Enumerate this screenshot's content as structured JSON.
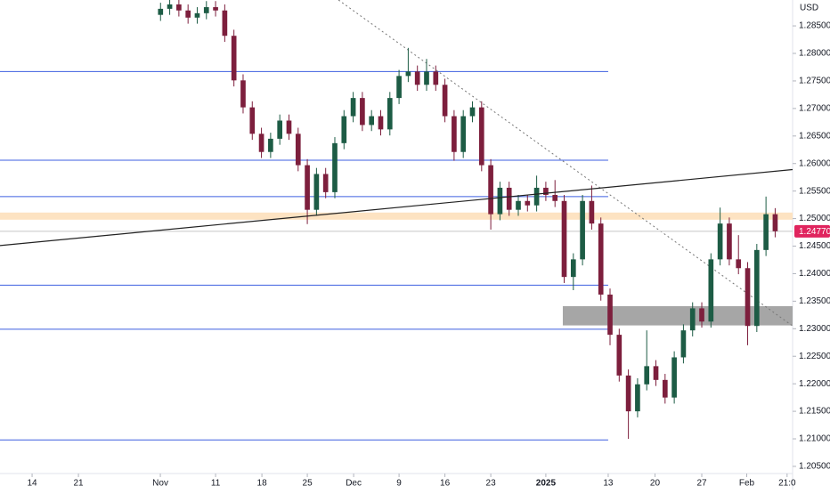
{
  "chart_data": {
    "type": "candlestick",
    "currency": "USD",
    "xlim": [
      -3.5,
      82.9
    ],
    "ylim": [
      1.2037,
      1.2897
    ],
    "xticks": [
      {
        "value": 0,
        "label": "14"
      },
      {
        "value": 5.05,
        "label": "21"
      },
      {
        "value": 13.98,
        "label": "Nov"
      },
      {
        "value": 20,
        "label": "11"
      },
      {
        "value": 25.05,
        "label": "18"
      },
      {
        "value": 30,
        "label": "25"
      },
      {
        "value": 35.05,
        "label": "Dec"
      },
      {
        "value": 40,
        "label": "9"
      },
      {
        "value": 45,
        "label": "16"
      },
      {
        "value": 50,
        "label": "23"
      },
      {
        "value": 56,
        "label": "2025"
      },
      {
        "value": 62.8,
        "label": "13"
      },
      {
        "value": 67.9,
        "label": "20"
      },
      {
        "value": 73,
        "label": "27"
      },
      {
        "value": 77.9,
        "label": "Feb"
      },
      {
        "value": 82.3,
        "label": "21:0"
      }
    ],
    "yticks": [
      {
        "value": 1.205,
        "label": "1.20500"
      },
      {
        "value": 1.21,
        "label": "1.21000"
      },
      {
        "value": 1.215,
        "label": "1.21500"
      },
      {
        "value": 1.22,
        "label": "1.22000"
      },
      {
        "value": 1.225,
        "label": "1.22500"
      },
      {
        "value": 1.23,
        "label": "1.23000"
      },
      {
        "value": 1.235,
        "label": "1.23500"
      },
      {
        "value": 1.24,
        "label": "1.24000"
      },
      {
        "value": 1.245,
        "label": "1.24500"
      },
      {
        "value": 1.25,
        "label": "1.25000"
      },
      {
        "value": 1.255,
        "label": "1.25500"
      },
      {
        "value": 1.26,
        "label": "1.26000"
      },
      {
        "value": 1.265,
        "label": "1.26500"
      },
      {
        "value": 1.27,
        "label": "1.27000"
      },
      {
        "value": 1.275,
        "label": "1.27500"
      },
      {
        "value": 1.28,
        "label": "1.28000"
      },
      {
        "value": 1.285,
        "label": "1.28500"
      }
    ],
    "up_color": "#1d5c45",
    "down_color": "#7d1f3d",
    "last_price": {
      "value": 1.2477,
      "label": "1.24770"
    },
    "last_price_color": "#e0245e",
    "levels": [
      1.2767,
      1.2606,
      1.254,
      1.2379,
      1.2299,
      1.2098
    ],
    "levels_end_x": 62.8,
    "levels_color": "#3d5fe0",
    "zone": [
      1.2498,
      1.2511
    ],
    "zone_color": "#fde3c2",
    "box": {
      "x": [
        57.85,
        82.9
      ],
      "y": [
        1.2306,
        1.2341
      ],
      "color": "#a6a6a6"
    },
    "trendline": {
      "x": [
        -3.5,
        82.9
      ],
      "y": [
        1.2451,
        1.2589
      ],
      "color": "#222222"
    },
    "dotted_line": {
      "x": [
        33.4,
        82.9
      ],
      "y": [
        1.2897,
        1.2305
      ],
      "color": "#777777"
    },
    "series": [
      {
        "x": [
          14,
          15,
          16,
          17,
          18,
          19,
          20,
          21,
          22,
          23,
          24,
          25,
          26,
          27,
          28,
          29,
          30,
          31,
          32,
          33,
          34,
          35,
          36,
          37,
          38,
          39,
          40,
          41,
          42,
          43,
          44,
          45,
          46,
          47,
          48,
          49,
          50,
          51,
          52,
          53,
          54,
          55,
          56,
          57,
          58,
          59,
          60,
          61,
          62,
          63,
          64,
          65,
          66,
          67,
          68,
          69,
          70,
          71,
          72,
          73,
          74,
          75,
          76,
          77,
          78,
          79,
          80,
          81
        ],
        "open": [
          1.287,
          1.2881,
          1.2889,
          1.2878,
          1.2865,
          1.2873,
          1.2884,
          1.2878,
          1.2832,
          1.2751,
          1.2702,
          1.2654,
          1.2621,
          1.2645,
          1.2678,
          1.2654,
          1.2597,
          1.2516,
          1.2581,
          1.2548,
          1.2637,
          1.2686,
          1.2719,
          1.267,
          1.2686,
          1.2662,
          1.2719,
          1.2759,
          1.2767,
          1.2743,
          1.2767,
          1.2743,
          1.2686,
          1.2621,
          1.2686,
          1.2702,
          1.2597,
          1.2508,
          1.2556,
          1.2516,
          1.2532,
          1.2524,
          1.2556,
          1.2543,
          1.2532,
          1.2394,
          1.2426,
          1.2532,
          1.2491,
          1.2362,
          1.2289,
          1.2215,
          1.215,
          1.2199,
          1.2232,
          1.2207,
          1.2175,
          1.2248,
          1.2297,
          1.2337,
          1.2313,
          1.2426,
          1.2491,
          1.2426,
          1.241,
          1.2305,
          1.2443,
          1.2508
        ],
        "high": [
          1.2892,
          1.29,
          1.29,
          1.2889,
          1.2884,
          1.2895,
          1.2895,
          1.2889,
          1.2843,
          1.2762,
          1.2713,
          1.2665,
          1.2656,
          1.2689,
          1.2689,
          1.2665,
          1.2608,
          1.2592,
          1.2592,
          1.2648,
          1.2697,
          1.273,
          1.273,
          1.2697,
          1.2697,
          1.273,
          1.277,
          1.281,
          1.2778,
          1.279,
          1.2778,
          1.2754,
          1.2697,
          1.2697,
          1.2713,
          1.2713,
          1.2608,
          1.2567,
          1.2567,
          1.2543,
          1.2543,
          1.2578,
          1.2567,
          1.257,
          1.2543,
          1.2437,
          1.2543,
          1.256,
          1.2502,
          1.2373,
          1.23,
          1.2226,
          1.221,
          1.2297,
          1.2243,
          1.2218,
          1.2259,
          1.2308,
          1.2348,
          1.2348,
          1.2437,
          1.252,
          1.2502,
          1.247,
          1.2421,
          1.2454,
          1.254,
          1.2519
        ],
        "low": [
          1.2859,
          1.287,
          1.2867,
          1.2854,
          1.2854,
          1.2862,
          1.2867,
          1.2821,
          1.274,
          1.2691,
          1.2643,
          1.261,
          1.261,
          1.2634,
          1.2643,
          1.2586,
          1.249,
          1.2505,
          1.2537,
          1.2537,
          1.2626,
          1.2675,
          1.2659,
          1.2659,
          1.2651,
          1.2651,
          1.2708,
          1.2748,
          1.2732,
          1.2732,
          1.2732,
          1.2675,
          1.2605,
          1.261,
          1.2675,
          1.2586,
          1.248,
          1.2497,
          1.2505,
          1.2505,
          1.2513,
          1.2513,
          1.2532,
          1.2521,
          1.2383,
          1.237,
          1.2415,
          1.248,
          1.2351,
          1.227,
          1.2204,
          1.21,
          1.2139,
          1.2188,
          1.2196,
          1.2164,
          1.2164,
          1.2237,
          1.2286,
          1.2302,
          1.2302,
          1.2415,
          1.2415,
          1.2399,
          1.227,
          1.2294,
          1.2432,
          1.2466
        ],
        "close": [
          1.2881,
          1.2889,
          1.2878,
          1.2865,
          1.2873,
          1.2884,
          1.2878,
          1.2832,
          1.2751,
          1.2702,
          1.2654,
          1.2621,
          1.2645,
          1.2678,
          1.2654,
          1.2597,
          1.2516,
          1.2581,
          1.2548,
          1.2637,
          1.2686,
          1.2719,
          1.267,
          1.2686,
          1.2662,
          1.2719,
          1.2759,
          1.2767,
          1.2743,
          1.2767,
          1.2743,
          1.2686,
          1.2621,
          1.2686,
          1.2702,
          1.2597,
          1.2508,
          1.2556,
          1.2516,
          1.2532,
          1.2524,
          1.2556,
          1.2543,
          1.2532,
          1.2394,
          1.2426,
          1.2532,
          1.2491,
          1.2362,
          1.2289,
          1.2215,
          1.215,
          1.2199,
          1.2232,
          1.2207,
          1.2175,
          1.2248,
          1.2297,
          1.2337,
          1.2313,
          1.2426,
          1.2491,
          1.2426,
          1.241,
          1.2305,
          1.2443,
          1.2508,
          1.2477
        ]
      }
    ]
  }
}
